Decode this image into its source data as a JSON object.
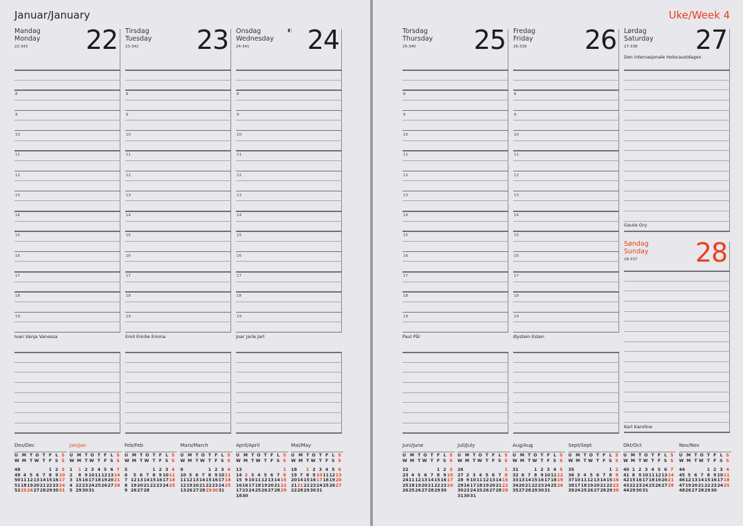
{
  "left_page": {
    "month_title": "Januar/January"
  },
  "right_page": {
    "week_title": "Uke/Week 4"
  },
  "colors": {
    "accent_red": "#e8401c",
    "text": "#222222",
    "paper": "#e8e7ec"
  },
  "hours": [
    "8",
    "9",
    "10",
    "11",
    "12",
    "13",
    "14",
    "15",
    "16",
    "17",
    "18",
    "19"
  ],
  "weekdays": [
    {
      "no": "Mandag",
      "en": "Monday",
      "code": "22-343",
      "num": "22",
      "name": "Ivan Vanja Vanessa"
    },
    {
      "no": "Tirsdag",
      "en": "Tuesday",
      "code": "23-342",
      "num": "23",
      "name": "Emil Emilie Emma"
    },
    {
      "no": "Onsdag",
      "en": "Wednesday",
      "code": "24-341",
      "num": "24",
      "name": "Joar Jarle Jarl",
      "moon_icon": "first-quarter-moon-icon"
    },
    {
      "no": "Torsdag",
      "en": "Thursday",
      "code": "25-340",
      "num": "25",
      "name": "Paul Pål"
    },
    {
      "no": "Fredag",
      "en": "Friday",
      "code": "26-339",
      "num": "26",
      "name": "Øystein Esten"
    }
  ],
  "saturday": {
    "no": "Lørdag",
    "en": "Saturday",
    "code": "27-338",
    "num": "27",
    "event": "Den internasjonale Holocaustdagen",
    "name": "Gaute Gry"
  },
  "sunday": {
    "no": "Søndag",
    "en": "Sunday",
    "code": "28-337",
    "num": "28",
    "name": "Karl Karoline"
  },
  "mini_cal_header": {
    "week_no": "U",
    "week_en": "W",
    "days_no": [
      "M",
      "T",
      "O",
      "T",
      "F",
      "L",
      "S"
    ],
    "days_en": [
      "M",
      "T",
      "W",
      "T",
      "F",
      "S",
      "S"
    ]
  },
  "mini_calendars": [
    {
      "label": "Des/Dec",
      "red": [
        3,
        10,
        17,
        24,
        25,
        26,
        31
      ],
      "rows": [
        [
          48,
          null,
          null,
          null,
          null,
          1,
          2,
          3
        ],
        [
          49,
          4,
          5,
          6,
          7,
          8,
          9,
          10
        ],
        [
          50,
          11,
          12,
          13,
          14,
          15,
          16,
          17
        ],
        [
          51,
          18,
          19,
          20,
          21,
          22,
          23,
          24
        ],
        [
          52,
          25,
          26,
          27,
          28,
          29,
          30,
          31
        ]
      ]
    },
    {
      "label": "Jan/Jan",
      "label_red": true,
      "red": [
        1,
        7,
        14,
        21,
        28
      ],
      "rows": [
        [
          1,
          1,
          2,
          3,
          4,
          5,
          6,
          7
        ],
        [
          2,
          8,
          9,
          10,
          11,
          12,
          13,
          14
        ],
        [
          3,
          15,
          16,
          17,
          18,
          19,
          20,
          21
        ],
        [
          4,
          22,
          23,
          24,
          25,
          26,
          27,
          28
        ],
        [
          5,
          29,
          30,
          31
        ]
      ]
    },
    {
      "label": "Feb/Feb",
      "red": [
        4,
        11,
        18,
        25
      ],
      "rows": [
        [
          5,
          null,
          null,
          null,
          1,
          2,
          3,
          4
        ],
        [
          6,
          5,
          6,
          7,
          8,
          9,
          10,
          11
        ],
        [
          7,
          12,
          13,
          14,
          15,
          16,
          17,
          18
        ],
        [
          8,
          19,
          20,
          21,
          22,
          23,
          24,
          25
        ],
        [
          9,
          26,
          27,
          28
        ]
      ]
    },
    {
      "label": "Mars/March",
      "red": [
        4,
        11,
        18,
        25,
        29,
        30
      ],
      "rows": [
        [
          9,
          null,
          null,
          null,
          1,
          2,
          3,
          4
        ],
        [
          10,
          5,
          6,
          7,
          8,
          9,
          10,
          11
        ],
        [
          11,
          12,
          13,
          14,
          15,
          16,
          17,
          18
        ],
        [
          12,
          19,
          20,
          21,
          22,
          23,
          24,
          25
        ],
        [
          13,
          26,
          27,
          28,
          29,
          30,
          31
        ]
      ]
    },
    {
      "label": "April/April",
      "red": [
        1,
        2,
        8,
        15,
        22,
        29
      ],
      "rows": [
        [
          13,
          null,
          null,
          null,
          null,
          null,
          null,
          1
        ],
        [
          14,
          2,
          3,
          4,
          5,
          6,
          7,
          8
        ],
        [
          15,
          9,
          10,
          11,
          12,
          13,
          14,
          15
        ],
        [
          16,
          16,
          17,
          18,
          19,
          20,
          21,
          22
        ],
        [
          17,
          23,
          24,
          25,
          26,
          27,
          28,
          29
        ],
        [
          18,
          30
        ]
      ]
    },
    {
      "label": "Mai/May",
      "red": [
        1,
        6,
        10,
        13,
        17,
        20,
        21,
        27
      ],
      "rows": [
        [
          18,
          null,
          1,
          2,
          3,
          4,
          5,
          6
        ],
        [
          19,
          7,
          8,
          9,
          10,
          11,
          12,
          13
        ],
        [
          20,
          14,
          15,
          16,
          17,
          18,
          19,
          20
        ],
        [
          21,
          21,
          22,
          23,
          24,
          25,
          26,
          27
        ],
        [
          22,
          28,
          29,
          30,
          31
        ]
      ]
    },
    {
      "label": "Juni/June",
      "red": [
        3,
        10,
        17,
        24
      ],
      "rows": [
        [
          22,
          null,
          null,
          null,
          null,
          1,
          2,
          3
        ],
        [
          23,
          4,
          5,
          6,
          7,
          8,
          9,
          10
        ],
        [
          24,
          11,
          12,
          13,
          14,
          15,
          16,
          17
        ],
        [
          25,
          18,
          19,
          20,
          21,
          22,
          23,
          24
        ],
        [
          26,
          25,
          26,
          27,
          28,
          29,
          30
        ]
      ]
    },
    {
      "label": "Juli/July",
      "red": [
        1,
        8,
        15,
        22,
        29
      ],
      "rows": [
        [
          26,
          null,
          null,
          null,
          null,
          null,
          null,
          1
        ],
        [
          27,
          2,
          3,
          4,
          5,
          6,
          7,
          8
        ],
        [
          28,
          9,
          10,
          11,
          12,
          13,
          14,
          15
        ],
        [
          29,
          16,
          17,
          18,
          19,
          20,
          21,
          22
        ],
        [
          30,
          23,
          24,
          25,
          26,
          27,
          28,
          29
        ],
        [
          31,
          30,
          31
        ]
      ]
    },
    {
      "label": "Aug/Aug",
      "red": [
        5,
        12,
        19,
        26
      ],
      "rows": [
        [
          31,
          null,
          null,
          1,
          2,
          3,
          4,
          5
        ],
        [
          32,
          6,
          7,
          8,
          9,
          10,
          11,
          12
        ],
        [
          33,
          13,
          14,
          15,
          16,
          17,
          18,
          19
        ],
        [
          34,
          20,
          21,
          22,
          23,
          24,
          25,
          26
        ],
        [
          35,
          27,
          28,
          29,
          30,
          31
        ]
      ]
    },
    {
      "label": "Sept/Sept",
      "red": [
        2,
        9,
        16,
        23,
        30
      ],
      "rows": [
        [
          35,
          null,
          null,
          null,
          null,
          null,
          1,
          2
        ],
        [
          36,
          3,
          4,
          5,
          6,
          7,
          8,
          9
        ],
        [
          37,
          10,
          11,
          12,
          13,
          14,
          15,
          16
        ],
        [
          38,
          17,
          18,
          19,
          20,
          21,
          22,
          23
        ],
        [
          39,
          24,
          25,
          26,
          27,
          28,
          29,
          30
        ]
      ]
    },
    {
      "label": "Okt/Oct",
      "red": [
        7,
        14,
        21,
        28
      ],
      "rows": [
        [
          40,
          1,
          2,
          3,
          4,
          5,
          6,
          7
        ],
        [
          41,
          8,
          9,
          10,
          11,
          12,
          13,
          14
        ],
        [
          42,
          15,
          16,
          17,
          18,
          19,
          20,
          21
        ],
        [
          43,
          22,
          23,
          24,
          25,
          26,
          27,
          28
        ],
        [
          44,
          29,
          30,
          31
        ]
      ]
    },
    {
      "label": "Nov/Nov",
      "red": [
        4,
        11,
        18,
        25
      ],
      "rows": [
        [
          44,
          null,
          null,
          null,
          1,
          2,
          3,
          4
        ],
        [
          45,
          5,
          6,
          7,
          8,
          9,
          10,
          11
        ],
        [
          46,
          12,
          13,
          14,
          15,
          16,
          17,
          18
        ],
        [
          47,
          19,
          20,
          21,
          22,
          23,
          24,
          25
        ],
        [
          48,
          26,
          27,
          28,
          29,
          30
        ]
      ]
    }
  ]
}
